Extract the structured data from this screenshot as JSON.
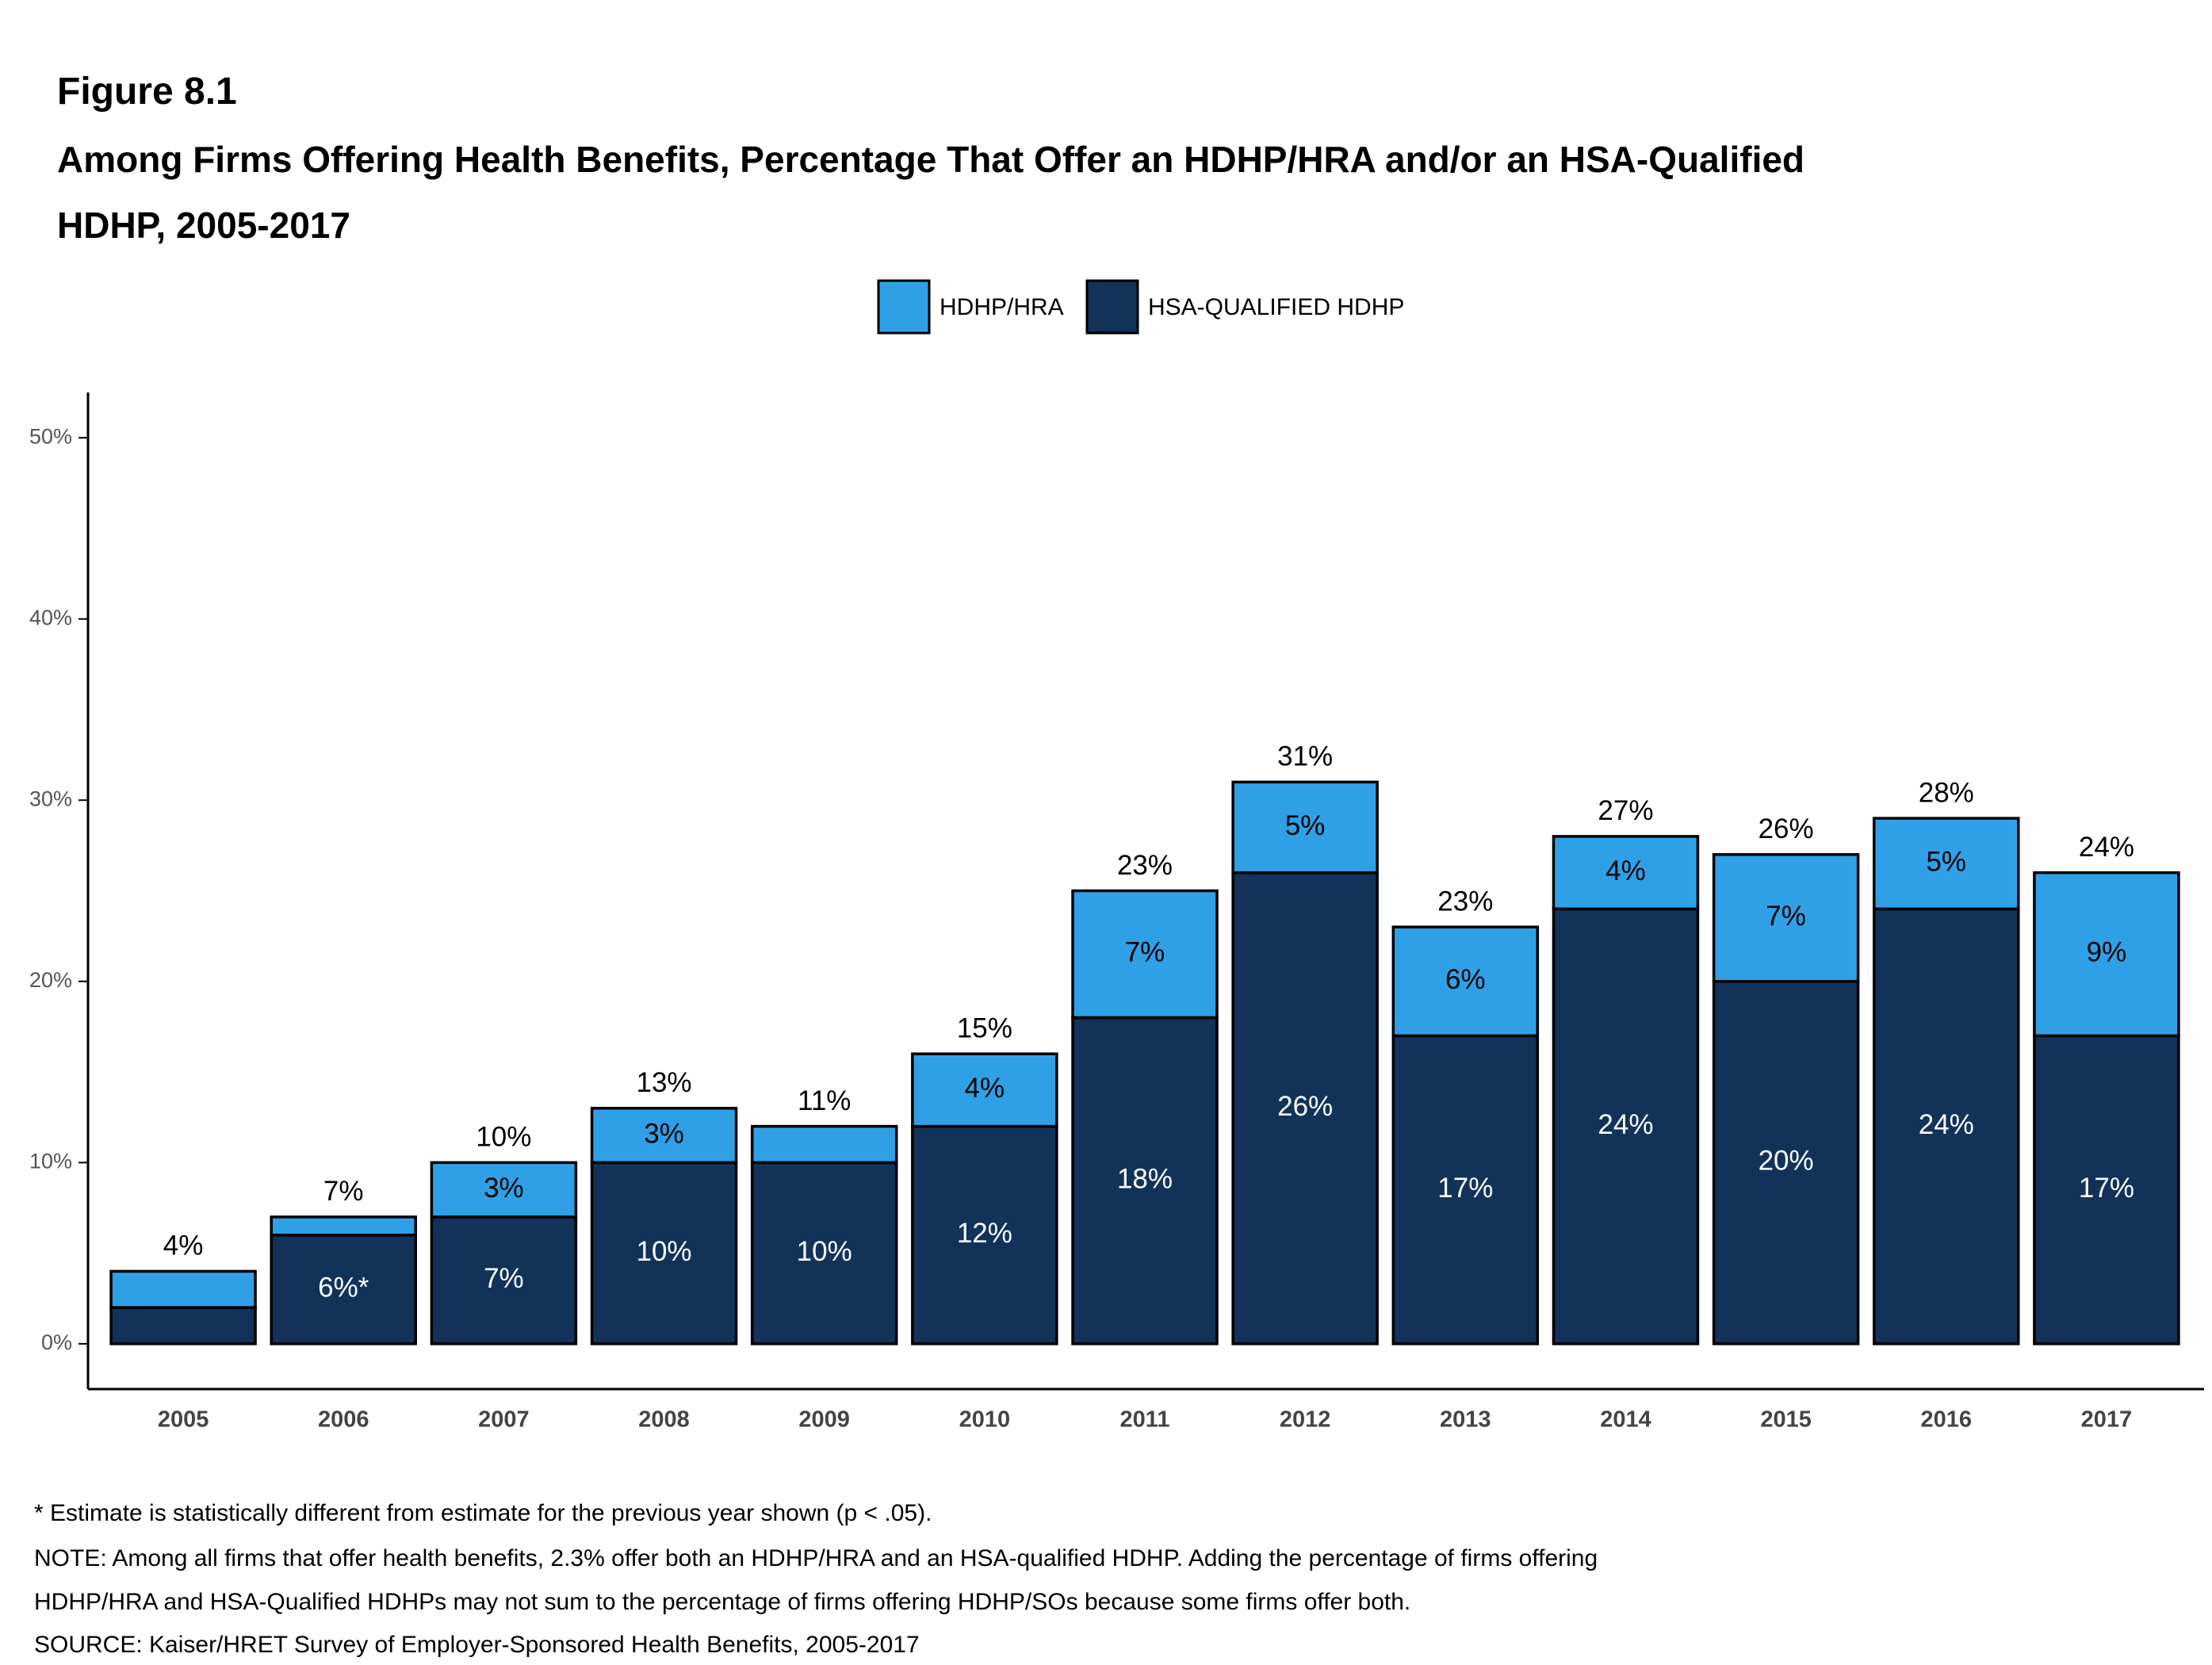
{
  "chart_data": {
    "type": "stacked_bar",
    "figure_label": "Figure 8.1",
    "title": "Among Firms Offering Health Benefits, Percentage That Offer an HDHP/HRA and/or an HSA-Qualified HDHP, 2005-2017",
    "categories": [
      "2005",
      "2006",
      "2007",
      "2008",
      "2009",
      "2010",
      "2011",
      "2012",
      "2013",
      "2014",
      "2015",
      "2016",
      "2017"
    ],
    "series": [
      {
        "name": "HSA-QUALIFIED HDHP",
        "color": "#12325a",
        "values": [
          2,
          6,
          7,
          10,
          10,
          12,
          18,
          26,
          17,
          24,
          20,
          24,
          17
        ],
        "value_labels": [
          null,
          "6%*",
          "7%",
          "10%",
          "10%",
          "12%",
          "18%",
          "26%",
          "17%",
          "24%",
          "20%",
          "24%",
          "17%"
        ]
      },
      {
        "name": "HDHP/HRA",
        "color": "#30a0e6",
        "values": [
          2,
          1,
          3,
          3,
          2,
          4,
          7,
          5,
          6,
          4,
          7,
          5,
          9
        ],
        "value_labels": [
          null,
          null,
          "3%",
          "3%",
          null,
          "4%",
          "7%",
          "5%",
          "6%",
          "4%",
          "7%",
          "5%",
          "9%"
        ]
      }
    ],
    "totals": {
      "values": [
        4,
        7,
        10,
        13,
        11,
        15,
        23,
        31,
        23,
        27,
        26,
        28,
        24
      ],
      "value_labels": [
        "4%",
        "7%",
        "10%",
        "13%",
        "11%",
        "15%",
        "23%",
        "31%",
        "23%",
        "27%",
        "26%",
        "28%",
        "24%"
      ]
    },
    "ylim": [
      -2.5,
      52.5
    ],
    "yticks": [
      {
        "value": 0,
        "label": "0%"
      },
      {
        "value": 10,
        "label": "10%"
      },
      {
        "value": 20,
        "label": "20%"
      },
      {
        "value": 30,
        "label": "30%"
      },
      {
        "value": 40,
        "label": "40%"
      },
      {
        "value": 50,
        "label": "50%"
      }
    ],
    "notes": [
      "* Estimate is statistically different from estimate for the previous year shown (p < .05).",
      "NOTE: Among all firms that offer health benefits, 2.3% offer both an HDHP/HRA and an HSA-qualified HDHP.  Adding the percentage of firms offering",
      "HDHP/HRA and HSA-Qualified HDHPs may not sum to the percentage of firms offering HDHP/SOs because some firms offer both.",
      "SOURCE: Kaiser/HRET Survey of Employer-Sponsored Health Benefits, 2005-2017"
    ]
  }
}
